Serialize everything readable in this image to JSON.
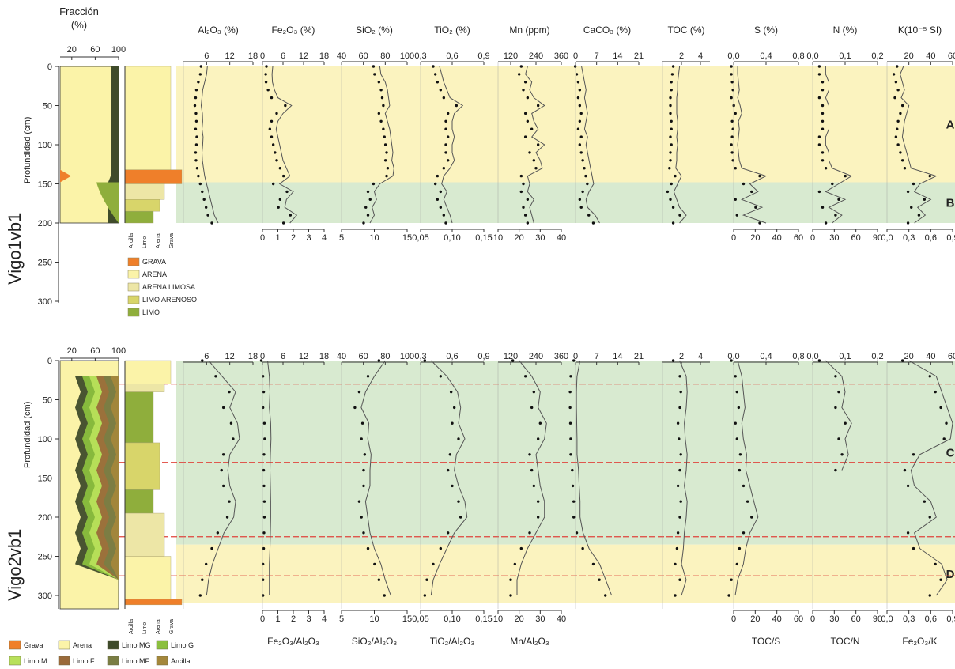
{
  "colors": {
    "zone_A": "#fbf3bf",
    "zone_B": "#d8ead0",
    "zone_C": "#d8ead0",
    "zone_D": "#fbf3bf",
    "boundary": "#e0443b",
    "Grava": "#ef7f2a",
    "Arena": "#fbf3a8",
    "Arena limosa": "#ede6a6",
    "Limo arenoso": "#d8d56a",
    "Limo": "#8fae3c",
    "Limo MG": "#3f4b2a",
    "Limo G": "#8bbf3e",
    "Limo M": "#b8e05a",
    "Limo F": "#9a6a3a",
    "Limo MF": "#7a7d43",
    "Arcilla": "#a4873b"
  },
  "header": {
    "fraction_title_1": "Fracción",
    "fraction_title_2": "(%)"
  },
  "chart_data": [
    {
      "core": "Vigo1vb1",
      "type": "line",
      "ylabel": "Profundidad (cm)",
      "y_ticks": [
        "0",
        "50",
        "100",
        "150",
        "200",
        "250",
        "300"
      ],
      "ylim": [
        0,
        310
      ],
      "fraction_ticks": [
        "20",
        "60",
        "100"
      ],
      "zones": [
        {
          "label": "A",
          "from": 0,
          "to": 148
        },
        {
          "label": "B",
          "from": 148,
          "to": 200
        }
      ],
      "lithology_axis": [
        "Arcilla",
        "Limo",
        "Arena",
        "Grava"
      ],
      "lithology_legend": [
        "GRAVA",
        "ARENA",
        "ARENA LIMOSA",
        "LIMO ARENOSO",
        "LIMO"
      ],
      "top_variables": [
        {
          "label": "Al₂O₃ (%)",
          "ticks": [
            "6",
            "12",
            "18"
          ],
          "range": [
            0,
            18
          ]
        },
        {
          "label": "Fe₂O₃ (%)",
          "ticks": [
            "0",
            "6",
            "12",
            "18"
          ],
          "range": [
            0,
            18
          ]
        },
        {
          "label": "SiO₂ (%)",
          "ticks": [
            "40",
            "60",
            "80",
            "100"
          ],
          "range": [
            40,
            100
          ]
        },
        {
          "label": "TiO₂ (%)",
          "ticks": [
            "0,3",
            "0,6",
            "0,9"
          ],
          "range": [
            0.3,
            0.9
          ]
        },
        {
          "label": "Mn (ppm)",
          "ticks": [
            "120",
            "240",
            "360"
          ],
          "range": [
            60,
            360
          ]
        },
        {
          "label": "CaCO₃ (%)",
          "ticks": [
            "0",
            "7",
            "14",
            "21"
          ],
          "range": [
            0,
            21
          ]
        },
        {
          "label": "TOC (%)",
          "ticks": [
            "2",
            "4"
          ],
          "range": [
            0,
            5
          ]
        },
        {
          "label": "S (%)",
          "ticks": [
            "0,0",
            "0,4",
            "0,8"
          ],
          "range": [
            0,
            0.8
          ]
        },
        {
          "label": "N (%)",
          "ticks": [
            "0,0",
            "0,1",
            "0,2"
          ],
          "range": [
            0,
            0.2
          ]
        },
        {
          "label": "K(10⁻⁵ SI)",
          "ticks": [
            "20",
            "40",
            "60"
          ],
          "range": [
            0,
            60
          ]
        }
      ],
      "bottom_ticks": [
        [
          "0",
          "1",
          "2",
          "3",
          "4"
        ],
        [
          "5",
          "10",
          "15"
        ],
        [
          "0,05",
          "0,10",
          "0,15"
        ],
        [
          "10",
          "20",
          "30",
          "40"
        ],
        [
          "0",
          "20",
          "40",
          "60"
        ],
        [
          "0",
          "30",
          "60",
          "90"
        ],
        [
          "0,0",
          "0,3",
          "0,6",
          "0,9"
        ]
      ],
      "depths": [
        0,
        10,
        20,
        30,
        40,
        50,
        60,
        70,
        80,
        90,
        100,
        110,
        120,
        130,
        140,
        150,
        160,
        170,
        180,
        190,
        200
      ],
      "series": [
        {
          "name": "Al₂O₃ (%)",
          "values": [
            6.2,
            6.0,
            5.5,
            5.0,
            4.8,
            4.6,
            4.9,
            5.0,
            4.8,
            5.1,
            5.0,
            4.8,
            4.9,
            5.2,
            5.5,
            6.0,
            6.5,
            7.0,
            7.5,
            8.0,
            9.0
          ]
        },
        {
          "name": "Fe₂O₃ (%)",
          "values": [
            3.0,
            2.8,
            2.9,
            3.5,
            4.5,
            8.5,
            6.0,
            4.5,
            4.0,
            4.5,
            5.0,
            5.5,
            6.0,
            7.0,
            8.0,
            5.0,
            9.0,
            7.0,
            6.5,
            10.0,
            8.0
          ]
        },
        {
          "name": "SiO₂ (%)",
          "values": [
            75,
            76,
            80,
            82,
            83,
            84,
            80,
            82,
            84,
            85,
            86,
            87,
            86,
            88,
            87,
            75,
            70,
            72,
            68,
            70,
            66
          ]
        },
        {
          "name": "TiO₂ (%)",
          "values": [
            0.48,
            0.5,
            0.52,
            0.55,
            0.58,
            0.7,
            0.62,
            0.6,
            0.6,
            0.62,
            0.6,
            0.6,
            0.62,
            0.58,
            0.52,
            0.5,
            0.55,
            0.52,
            0.55,
            0.58,
            0.6
          ]
        },
        {
          "name": "Mn (ppm)",
          "values": [
            200,
            190,
            220,
            210,
            230,
            280,
            220,
            230,
            250,
            220,
            280,
            240,
            260,
            270,
            200,
            210,
            200,
            230,
            210,
            220,
            230
          ]
        },
        {
          "name": "CaCO₃ (%)",
          "values": [
            2.0,
            2.5,
            3.0,
            3.5,
            3.0,
            3.5,
            4.0,
            3.5,
            3.0,
            4.0,
            3.5,
            4.0,
            4.5,
            5.0,
            5.5,
            6.0,
            4.5,
            3.5,
            4.0,
            6.5,
            8.0
          ]
        },
        {
          "name": "TOC (%)",
          "values": [
            1.8,
            1.7,
            1.6,
            1.6,
            1.5,
            1.5,
            1.5,
            1.6,
            1.6,
            1.5,
            1.6,
            1.5,
            1.5,
            1.4,
            2.0,
            1.6,
            1.2,
            1.5,
            1.8,
            2.5,
            1.8
          ]
        },
        {
          "name": "S (%)",
          "values": [
            0.05,
            0.05,
            0.06,
            0.07,
            0.05,
            0.08,
            0.1,
            0.06,
            0.07,
            0.06,
            0.05,
            0.06,
            0.07,
            0.1,
            0.4,
            0.2,
            0.3,
            0.1,
            0.35,
            0.12,
            0.4
          ]
        },
        {
          "name": "N (%)",
          "values": [
            0.04,
            0.04,
            0.05,
            0.05,
            0.04,
            0.05,
            0.05,
            0.05,
            0.05,
            0.04,
            0.04,
            0.05,
            0.05,
            0.06,
            0.12,
            0.08,
            0.04,
            0.1,
            0.05,
            0.09,
            0.06
          ]
        },
        {
          "name": "K(10⁻⁵ SI)",
          "values": [
            15,
            12,
            14,
            16,
            13,
            20,
            18,
            16,
            15,
            14,
            16,
            18,
            20,
            22,
            45,
            30,
            25,
            40,
            28,
            35,
            25
          ]
        }
      ]
    },
    {
      "core": "Vigo2vb1",
      "type": "line",
      "ylabel": "Profundidad (cm)",
      "y_ticks": [
        "0",
        "50",
        "100",
        "150",
        "200",
        "250",
        "300"
      ],
      "ylim": [
        0,
        310
      ],
      "fraction_ticks": [
        "20",
        "60",
        "100"
      ],
      "zones": [
        {
          "label": "C",
          "from": 0,
          "to": 235
        },
        {
          "label": "D",
          "from": 235,
          "to": 310
        }
      ],
      "boundaries": [
        30,
        130,
        225,
        275
      ],
      "lithology_axis": [
        "Arcilla",
        "Limo",
        "Arena",
        "Grava"
      ],
      "fraction_legend": [
        "Grava",
        "Arena",
        "Limo MG",
        "Limo G",
        "Limo M",
        "Limo F",
        "Limo MF",
        "Arcilla"
      ],
      "top_variables": [
        {
          "label": "Al₂O₃ (%)",
          "ticks": [
            "6",
            "12",
            "18"
          ],
          "range": [
            0,
            18
          ]
        },
        {
          "label": "Fe₂O₃ (%)",
          "ticks": [
            "0",
            "6",
            "12",
            "18"
          ],
          "range": [
            0,
            18
          ]
        },
        {
          "label": "SiO₂ (%)",
          "ticks": [
            "40",
            "60",
            "80",
            "100"
          ],
          "range": [
            40,
            100
          ]
        },
        {
          "label": "TiO₂ (%)",
          "ticks": [
            "0,3",
            "0,6",
            "0,9"
          ],
          "range": [
            0.3,
            0.9
          ]
        },
        {
          "label": "Mn (ppm)",
          "ticks": [
            "120",
            "240",
            "360"
          ],
          "range": [
            60,
            360
          ]
        },
        {
          "label": "CaCO₃ (%)",
          "ticks": [
            "0",
            "7",
            "14",
            "21"
          ],
          "range": [
            0,
            21
          ]
        },
        {
          "label": "TOC (%)",
          "ticks": [
            "2",
            "4"
          ],
          "range": [
            0,
            5
          ]
        },
        {
          "label": "S (%)",
          "ticks": [
            "0,0",
            "0,4",
            "0,8"
          ],
          "range": [
            0,
            0.8
          ]
        },
        {
          "label": "N (%)",
          "ticks": [
            "0,0",
            "0,1",
            "0,2"
          ],
          "range": [
            0,
            0.2
          ]
        },
        {
          "label": "K(10⁻⁵ SI)",
          "ticks": [
            "20",
            "40",
            "60"
          ],
          "range": [
            0,
            60
          ]
        }
      ],
      "bottom_ticks": [
        [
          "0",
          "1",
          "2",
          "3",
          "4"
        ],
        [
          "5",
          "10",
          "15"
        ],
        [
          "0,05",
          "0,10",
          "0,15"
        ],
        [
          "10",
          "20",
          "30",
          "40"
        ],
        [
          "0",
          "20",
          "40",
          "60"
        ],
        [
          "0",
          "30",
          "60",
          "90"
        ],
        [
          "0,0",
          "0,3",
          "0,6",
          "0,9"
        ]
      ],
      "bottom_labels": [
        "Fe₂O₃/Al₂O₃",
        "SiO₂/Al₂O₃",
        "TiO₂/Al₂O₃",
        "Mn/Al₂O₃",
        "TOC/S",
        "TOC/N",
        "Fe₂O₃/K"
      ],
      "depths": [
        0,
        20,
        40,
        60,
        80,
        100,
        120,
        140,
        160,
        180,
        200,
        220,
        240,
        260,
        280,
        300
      ],
      "series": [
        {
          "name": "Al₂O₃ (%)",
          "values": [
            6.5,
            10.0,
            13.5,
            12.0,
            14.0,
            14.5,
            12.0,
            11.5,
            12.0,
            13.5,
            13.0,
            10.5,
            9.0,
            7.5,
            6.5,
            6.0
          ]
        },
        {
          "name": "Fe₂O₃ (%)",
          "values": [
            1.5,
            2.0,
            2.2,
            2.0,
            2.4,
            2.5,
            2.3,
            2.2,
            2.3,
            2.4,
            2.4,
            2.3,
            2.2,
            2.0,
            2.0,
            2.0
          ]
        },
        {
          "name": "SiO₂ (%)",
          "values": [
            80,
            70,
            62,
            58,
            65,
            64,
            67,
            66,
            66,
            62,
            64,
            66,
            70,
            76,
            80,
            85
          ]
        },
        {
          "name": "TiO₂ (%)",
          "values": [
            0.4,
            0.55,
            0.65,
            0.68,
            0.66,
            0.72,
            0.64,
            0.62,
            0.66,
            0.72,
            0.74,
            0.62,
            0.55,
            0.48,
            0.42,
            0.4
          ]
        },
        {
          "name": "Mn (ppm)",
          "values": [
            160,
            220,
            260,
            250,
            290,
            280,
            240,
            250,
            260,
            280,
            280,
            240,
            200,
            170,
            150,
            150
          ]
        },
        {
          "name": "CaCO₃ (%)",
          "values": [
            1.5,
            0.5,
            0.3,
            0.3,
            0.4,
            0.5,
            0.5,
            1.0,
            1.2,
            1.5,
            1.5,
            2.5,
            4.5,
            8.0,
            10.0,
            12.0
          ]
        },
        {
          "name": "TOC (%)",
          "values": [
            1.8,
            2.5,
            2.6,
            2.5,
            2.3,
            2.4,
            2.6,
            2.5,
            2.3,
            2.6,
            2.5,
            2.3,
            2.2,
            2.0,
            2.5,
            2.0
          ]
        },
        {
          "name": "S (%)",
          "values": [
            0.05,
            0.1,
            0.12,
            0.14,
            0.1,
            0.12,
            0.16,
            0.15,
            0.2,
            0.25,
            0.3,
            0.2,
            0.15,
            0.12,
            0.05,
            0.02
          ]
        },
        {
          "name": "N (%)",
          "values": [
            0.04,
            0.09,
            0.1,
            0.09,
            0.12,
            0.1,
            0.11,
            0.09,
            null,
            null,
            null,
            null,
            null,
            null,
            null,
            null
          ]
        },
        {
          "name": "K(10⁻⁵ SI)",
          "values": [
            20,
            45,
            50,
            55,
            60,
            58,
            30,
            22,
            25,
            40,
            45,
            25,
            30,
            50,
            55,
            45
          ]
        }
      ]
    }
  ]
}
